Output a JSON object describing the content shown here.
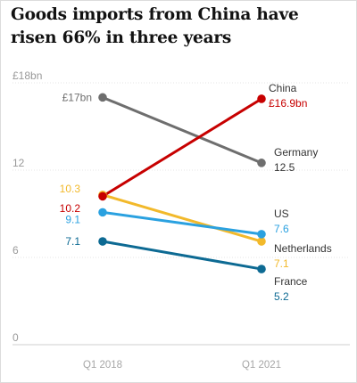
{
  "chart_data": {
    "type": "line",
    "title": "Goods imports from China have risen 66% in three years",
    "x": [
      "Q1 2018",
      "Q1 2021"
    ],
    "ylim": [
      0,
      18
    ],
    "yticks": [
      {
        "value": 0,
        "label": "0"
      },
      {
        "value": 6,
        "label": "6"
      },
      {
        "value": 12,
        "label": "12"
      },
      {
        "value": 18,
        "label": "£18bn"
      }
    ],
    "grid": true,
    "legend": "none",
    "series": [
      {
        "name": "Germany",
        "color": "#6e6e6e",
        "values": [
          17,
          12.5
        ],
        "labels": {
          "start": "£17bn",
          "end": "12.5"
        }
      },
      {
        "name": "Netherlands",
        "color": "#f2b92b",
        "values": [
          10.3,
          7.1
        ],
        "labels": {
          "start": "10.3",
          "end": "7.1"
        }
      },
      {
        "name": "US",
        "color": "#2aa1e0",
        "values": [
          9.1,
          7.6
        ],
        "labels": {
          "start": "9.1",
          "end": "7.6"
        }
      },
      {
        "name": "France",
        "color": "#0d6a93",
        "values": [
          7.1,
          5.2
        ],
        "labels": {
          "start": "7.1",
          "end": "5.2"
        }
      },
      {
        "name": "China",
        "color": "#c70000",
        "values": [
          10.2,
          16.9
        ],
        "labels": {
          "start": "10.2",
          "end": "£16.9bn"
        }
      }
    ]
  }
}
